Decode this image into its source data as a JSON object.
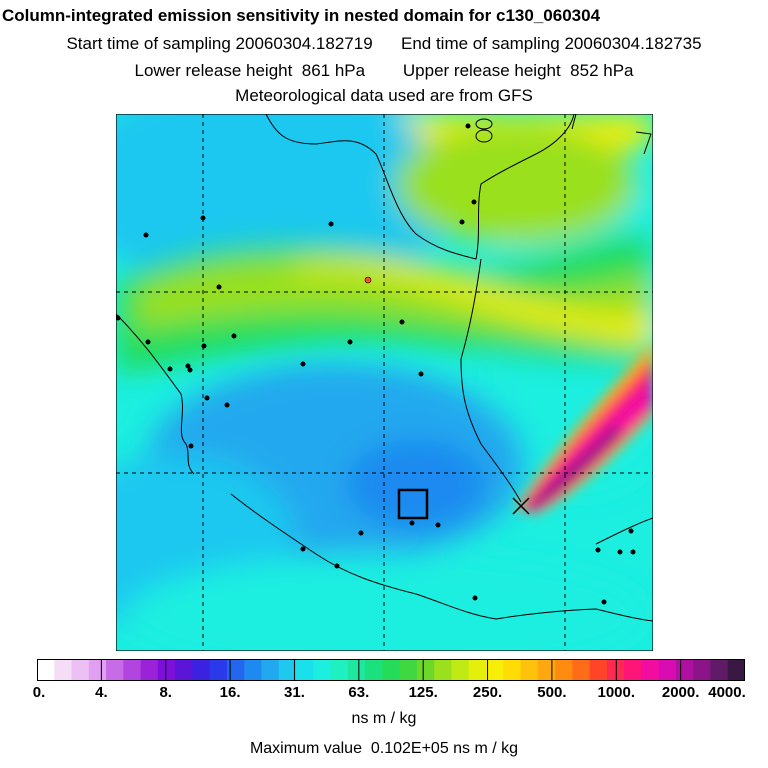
{
  "title": "Column-integrated emission sensitivity in nested domain for c130_060304",
  "line_start": "Start time of sampling 20060304.182719      End time of sampling 20060304.182735",
  "line_height": "Lower release height  861 hPa        Upper release height  852 hPa",
  "line_met": "Meteorological data used are from GFS",
  "colorbar": {
    "colors": [
      "#ffffff",
      "#f5ddf8",
      "#edc0f5",
      "#e19ff2",
      "#c76ce6",
      "#b245e0",
      "#9a22d8",
      "#7d10d8",
      "#5a15d8",
      "#3a22e0",
      "#2a3aea",
      "#2466ee",
      "#1e8af0",
      "#22a8ee",
      "#1ec8ef",
      "#19e0ea",
      "#1ceee0",
      "#1ef0c0",
      "#1ee8a0",
      "#1ae07e",
      "#24dc5a",
      "#40d840",
      "#6ed82a",
      "#9ae01c",
      "#c0ea14",
      "#e4f00a",
      "#f6ee06",
      "#ffdc04",
      "#ffc20c",
      "#ffa810",
      "#ff8c10",
      "#ff6c18",
      "#ff4428",
      "#ff2a50",
      "#ff1478",
      "#f20ca0",
      "#d80cb0",
      "#b010a0",
      "#8a1488",
      "#601a66",
      "#3a1844"
    ],
    "ticks": [
      "0.",
      "4.",
      "8.",
      "16.",
      "31.",
      "63.",
      "125.",
      "250.",
      "500.",
      "1000.",
      "2000.",
      "4000."
    ]
  },
  "units": "ns m / kg",
  "max_value": "Maximum value  0.102E+05 ns m / kg",
  "map": {
    "field_colors": {
      "deep_blue": "#1e8af0",
      "blue": "#22a8ee",
      "cyan": "#1ec8ef",
      "aqua": "#1ceee0",
      "green": "#24dc5a",
      "lime": "#9ae01c",
      "yellow": "#f6ee06",
      "orange": "#ffa810",
      "red": "#ff2a50",
      "magenta": "#f20ca0",
      "purple": "#8a1488"
    }
  }
}
